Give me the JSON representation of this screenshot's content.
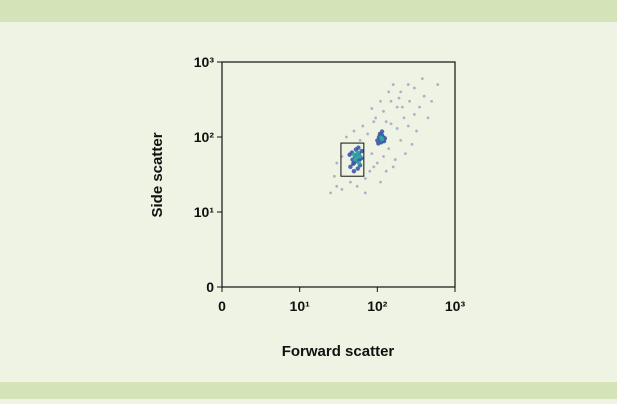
{
  "chart_data": {
    "type": "scatter",
    "xlabel": "Forward scatter",
    "ylabel": "Side scatter",
    "xscale": "log",
    "yscale": "log",
    "xlim": [
      1,
      1000
    ],
    "ylim": [
      1,
      1000
    ],
    "xticks": [
      {
        "value": 1,
        "label": "0"
      },
      {
        "value": 10,
        "label": "10¹"
      },
      {
        "value": 100,
        "label": "10²"
      },
      {
        "value": 1000,
        "label": "10³"
      }
    ],
    "yticks": [
      {
        "value": 1,
        "label": "0"
      },
      {
        "value": 10,
        "label": "10¹"
      },
      {
        "value": 100,
        "label": "10²"
      },
      {
        "value": 1000,
        "label": "10³"
      }
    ],
    "gate": {
      "x": [
        34,
        67
      ],
      "y": [
        30,
        83
      ]
    },
    "series": [
      {
        "color": "#a39cc4",
        "x": [
          25,
          30,
          35,
          28,
          45,
          55,
          70,
          80,
          90,
          60,
          75,
          85,
          100,
          120,
          140,
          150,
          180,
          200,
          220,
          250,
          300,
          180,
          150,
          120,
          200,
          260,
          350,
          400,
          500,
          450,
          320,
          280,
          230,
          170,
          130,
          110,
          95,
          140,
          160,
          110,
          40,
          50,
          35,
          30,
          65,
          90,
          600,
          380,
          250,
          70,
          160,
          210,
          130,
          300,
          190,
          85
        ],
        "values": [
          18,
          22,
          20,
          30,
          25,
          22,
          28,
          35,
          40,
          90,
          110,
          60,
          45,
          55,
          70,
          150,
          130,
          90,
          180,
          140,
          200,
          250,
          300,
          220,
          400,
          300,
          250,
          350,
          300,
          180,
          120,
          80,
          60,
          50,
          35,
          25,
          180,
          400,
          500,
          300,
          100,
          120,
          55,
          45,
          140,
          160,
          500,
          600,
          500,
          18,
          40,
          250,
          160,
          450,
          330,
          240
        ]
      },
      {
        "color": "#3a56a8",
        "x": [
          45,
          48,
          50,
          52,
          55,
          58,
          60,
          62,
          47,
          53,
          56,
          44,
          50,
          57,
          63,
          49,
          54,
          59,
          100,
          105,
          110,
          115,
          120,
          112,
          108,
          118,
          125,
          103,
          115,
          122
        ],
        "values": [
          40,
          50,
          45,
          55,
          48,
          60,
          42,
          52,
          62,
          68,
          38,
          58,
          35,
          72,
          65,
          44,
          58,
          50,
          90,
          100,
          95,
          105,
          92,
          85,
          110,
          100,
          96,
          82,
          118,
          88
        ]
      },
      {
        "color": "#2aa7a0",
        "x": [
          52,
          55,
          58,
          50,
          56,
          60,
          112,
          116
        ],
        "values": [
          50,
          55,
          45,
          58,
          62,
          55,
          98,
          94
        ]
      }
    ]
  }
}
